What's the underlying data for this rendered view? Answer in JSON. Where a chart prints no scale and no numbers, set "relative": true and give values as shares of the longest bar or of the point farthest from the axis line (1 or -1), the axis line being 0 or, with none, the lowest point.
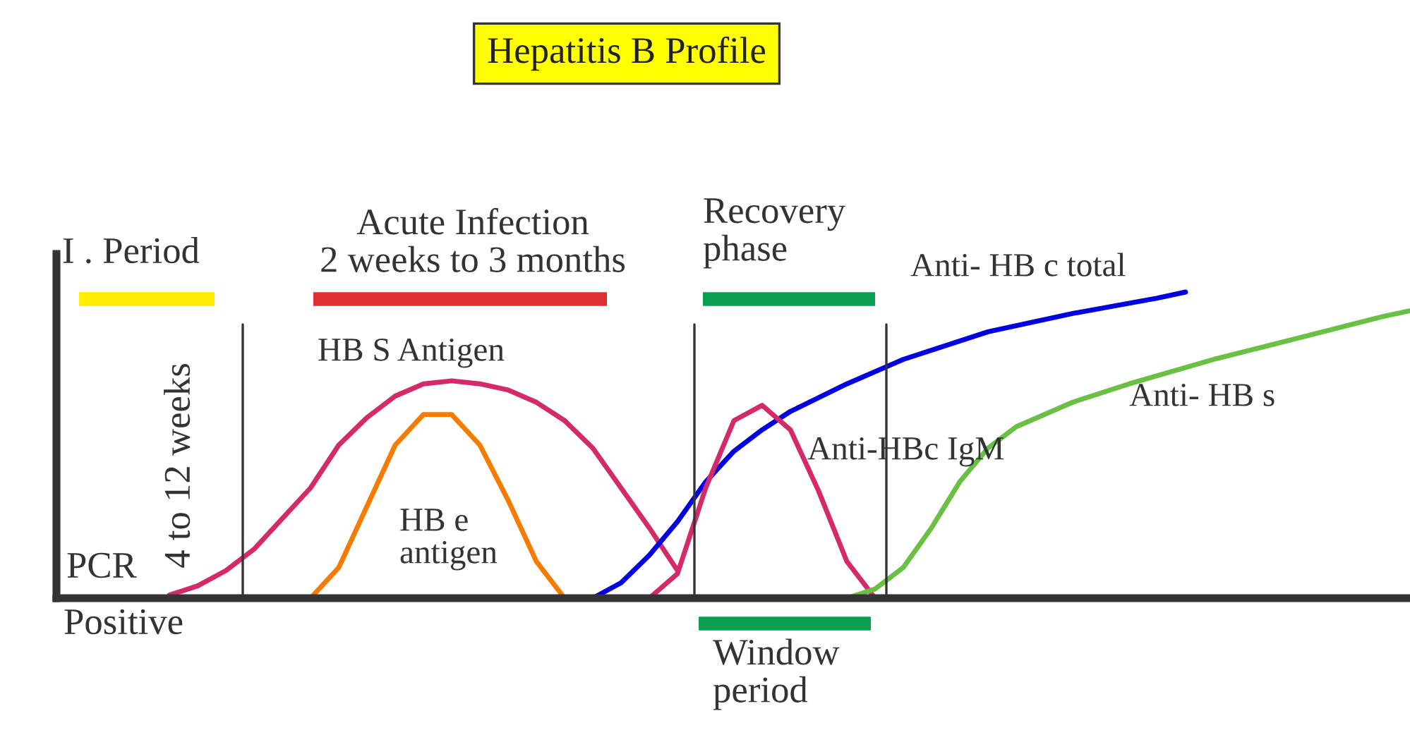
{
  "chart_data": {
    "type": "line",
    "title": "Hepatitis B Profile",
    "relative": true,
    "categories": [
      null,
      null,
      null,
      null,
      null,
      null,
      null,
      null,
      null,
      null,
      null,
      null,
      null,
      null,
      null,
      null,
      null,
      null,
      null,
      null,
      null,
      null,
      null,
      null,
      null,
      null,
      null,
      null,
      null,
      null,
      null,
      null,
      null,
      null,
      null,
      null,
      null,
      null,
      null,
      null,
      null,
      null,
      null,
      null,
      null,
      null,
      null,
      null,
      null
    ],
    "series": [
      {
        "name": "HB S Antigen",
        "color": "#d42a6a",
        "values": [
          null,
          null,
          null,
          null,
          0.01,
          0.04,
          0.09,
          0.16,
          0.26,
          0.36,
          0.5,
          0.59,
          0.66,
          0.7,
          0.71,
          0.7,
          0.68,
          0.64,
          0.58,
          0.49,
          0.36,
          0.23,
          0.09,
          null,
          null,
          null,
          null,
          null,
          null,
          null,
          null,
          null,
          null,
          null,
          null,
          null,
          null,
          null,
          null,
          null,
          null,
          null,
          null,
          null,
          null,
          null,
          null,
          null,
          null
        ]
      },
      {
        "name": "HB e\nantigen",
        "color": "#f57c00",
        "values": [
          null,
          null,
          null,
          null,
          null,
          null,
          null,
          null,
          null,
          0,
          0.1,
          0.3,
          0.5,
          0.6,
          0.6,
          0.5,
          0.32,
          0.12,
          0,
          null,
          null,
          null,
          null,
          null,
          null,
          null,
          null,
          null,
          null,
          null,
          null,
          null,
          null,
          null,
          null,
          null,
          null,
          null,
          null,
          null,
          null,
          null,
          null,
          null,
          null,
          null,
          null,
          null,
          null
        ]
      },
      {
        "name": "Anti- HB c total",
        "color": "#0000e0",
        "values": [
          null,
          null,
          null,
          null,
          null,
          null,
          null,
          null,
          null,
          null,
          null,
          null,
          null,
          null,
          null,
          null,
          null,
          null,
          null,
          0,
          0.05,
          0.14,
          0.25,
          0.38,
          0.48,
          0.55,
          0.61,
          null,
          0.7,
          null,
          0.78,
          null,
          null,
          0.87,
          null,
          null,
          0.93,
          null,
          null,
          0.98,
          1.0,
          null,
          null,
          null,
          null,
          null,
          null,
          null,
          null
        ]
      },
      {
        "name": "Anti-HBc IgM",
        "color": "#d42a6a",
        "values": [
          null,
          null,
          null,
          null,
          null,
          null,
          null,
          null,
          null,
          null,
          null,
          null,
          null,
          null,
          null,
          null,
          null,
          null,
          null,
          null,
          null,
          0,
          0.08,
          0.36,
          0.58,
          0.63,
          0.55,
          0.35,
          0.12,
          0,
          null,
          null,
          null,
          null,
          null,
          null,
          null,
          null,
          null,
          null,
          null,
          null,
          null,
          null,
          null,
          null,
          null,
          null,
          null
        ]
      },
      {
        "name": "Anti- HB s",
        "color": "#6abf45",
        "values": [
          null,
          null,
          null,
          null,
          null,
          null,
          null,
          null,
          null,
          null,
          null,
          null,
          null,
          null,
          null,
          null,
          null,
          null,
          null,
          null,
          null,
          null,
          null,
          null,
          null,
          null,
          null,
          null,
          0,
          0.03,
          0.1,
          0.23,
          0.38,
          0.49,
          0.56,
          null,
          0.64,
          null,
          0.7,
          null,
          null,
          0.78,
          null,
          null,
          0.85,
          null,
          null,
          0.92,
          0.94
        ]
      }
    ],
    "annotations": [
      "I . Period",
      "Acute Infection\n2 weeks to 3 months",
      "Recovery\nphase",
      "Window\nperiod",
      "4 to 12 weeks",
      "PCR",
      "Positive"
    ]
  }
}
